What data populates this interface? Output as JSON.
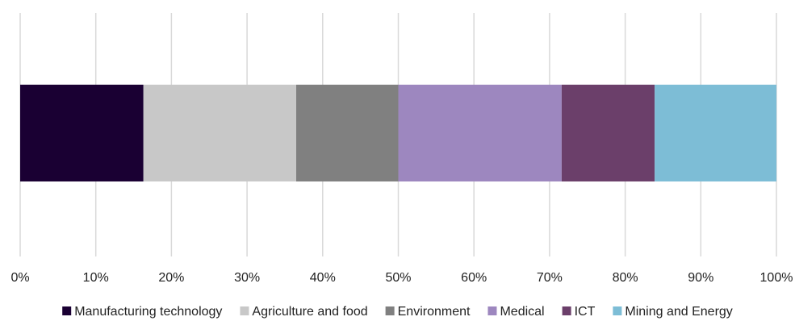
{
  "chart_data": {
    "type": "bar",
    "orientation": "horizontal",
    "stacked": true,
    "normalized": "percent",
    "title": "",
    "xlabel": "",
    "ylabel": "",
    "xlim": [
      0,
      100
    ],
    "x_ticks": [
      "0%",
      "10%",
      "20%",
      "30%",
      "40%",
      "50%",
      "60%",
      "70%",
      "80%",
      "90%",
      "100%"
    ],
    "grid": "vertical",
    "legend_position": "bottom",
    "series": [
      {
        "name": "Manufacturing technology",
        "value": 16.3,
        "color": "#1a0033"
      },
      {
        "name": "Agriculture and food",
        "value": 20.2,
        "color": "#c8c8c8"
      },
      {
        "name": "Environment",
        "value": 13.5,
        "color": "#808080"
      },
      {
        "name": "Medical",
        "value": 21.6,
        "color": "#9d87bf"
      },
      {
        "name": "ICT",
        "value": 12.3,
        "color": "#6b3f6a"
      },
      {
        "name": "Mining and Energy",
        "value": 16.1,
        "color": "#7dbdd6"
      }
    ]
  }
}
